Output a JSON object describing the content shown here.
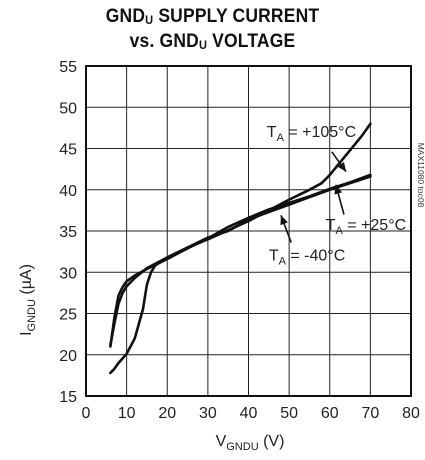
{
  "title": {
    "line1_main": "GND",
    "line1_sub": "U",
    "line1_rest": " SUPPLY CURRENT",
    "line2_prefix": "vs. GND",
    "line2_sub": "U",
    "line2_rest": " VOLTAGE"
  },
  "figure_code": "MAX11080 toc08",
  "chart_data": {
    "type": "line",
    "xlabel": {
      "main": "V",
      "sub": "GNDU",
      "unit": " (V)"
    },
    "ylabel": {
      "main": "I",
      "sub": "GNDU",
      "unit": " (µA)"
    },
    "xlim": [
      0,
      80
    ],
    "ylim": [
      15,
      55
    ],
    "xticks": [
      0,
      10,
      20,
      30,
      40,
      50,
      60,
      70,
      80
    ],
    "yticks": [
      15,
      20,
      25,
      30,
      35,
      40,
      45,
      50,
      55
    ],
    "grid": true,
    "series": [
      {
        "name": "T_A = +105°C",
        "label": {
          "prefix": "T",
          "sub": "A",
          "text": " = +105°C"
        },
        "x": [
          6,
          7,
          8,
          10,
          12,
          14,
          15,
          16,
          17,
          20,
          25,
          30,
          35,
          40,
          45,
          50,
          55,
          58,
          60,
          62,
          65,
          68,
          70
        ],
        "y": [
          17.8,
          18.3,
          19.0,
          20.1,
          22.0,
          25.5,
          28.5,
          30.0,
          30.8,
          31.8,
          33.0,
          34.0,
          35.1,
          36.2,
          37.5,
          38.8,
          40.0,
          40.8,
          41.8,
          43.0,
          44.8,
          46.6,
          48.0
        ]
      },
      {
        "name": "T_A = +25°C",
        "label": {
          "prefix": "T",
          "sub": "A",
          "text": " = +25°C"
        },
        "x": [
          6,
          7,
          8,
          9,
          10,
          12,
          15,
          20,
          25,
          30,
          35,
          40,
          45,
          50,
          55,
          60,
          65,
          70
        ],
        "y": [
          21.0,
          24.5,
          27.2,
          28.2,
          28.9,
          29.6,
          30.4,
          31.6,
          32.9,
          34.1,
          35.5,
          36.6,
          37.6,
          38.4,
          39.2,
          40.1,
          40.9,
          41.8
        ]
      },
      {
        "name": "T_A = -40°C",
        "label": {
          "prefix": "T",
          "sub": "A",
          "text": " = -40°C"
        },
        "x": [
          6,
          7,
          8,
          9,
          10,
          12,
          15,
          20,
          25,
          30,
          35,
          40,
          45,
          50,
          55,
          60,
          65,
          70
        ],
        "y": [
          21.2,
          23.8,
          26.2,
          27.5,
          28.3,
          29.3,
          30.5,
          31.8,
          33.0,
          34.2,
          35.0,
          36.4,
          37.3,
          38.2,
          39.1,
          40.0,
          40.8,
          41.6
        ]
      }
    ]
  }
}
